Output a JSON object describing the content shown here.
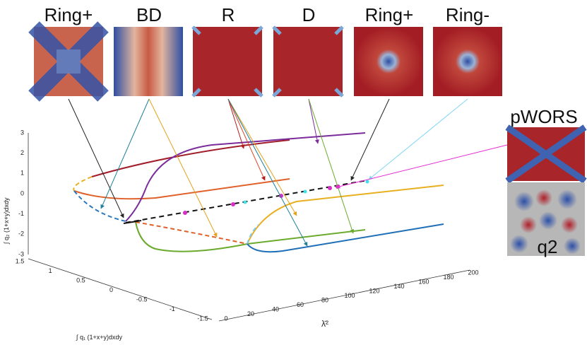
{
  "panels": [
    {
      "label": "Ring+"
    },
    {
      "label": "BD"
    },
    {
      "label": "R"
    },
    {
      "label": "D"
    },
    {
      "label": "Ring+"
    },
    {
      "label": "Ring-"
    }
  ],
  "side_panels": {
    "pwors": "pWORS",
    "q2": "q2"
  },
  "axes": {
    "z": {
      "label": "∫ q₂ (1+x+y)dxdy",
      "ticks": [
        3,
        2,
        1,
        0,
        -1,
        -2,
        -3
      ]
    },
    "x": {
      "label": "∫ q₁ (1+x+y)dxdy",
      "ticks": [
        1.5,
        1,
        0.5,
        0,
        -0.5,
        -1,
        -1.5
      ]
    },
    "y": {
      "label": "λ̄²",
      "ticks": [
        0,
        20,
        40,
        60,
        80,
        100,
        120,
        140,
        160,
        180,
        200
      ]
    }
  }
}
